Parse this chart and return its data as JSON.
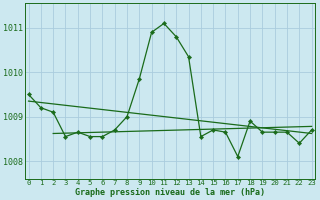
{
  "title": "Graphe pression niveau de la mer (hPa)",
  "background_color": "#cce8f0",
  "grid_color": "#aaccdd",
  "line_color": "#1a6b1a",
  "x_values": [
    0,
    1,
    2,
    3,
    4,
    5,
    6,
    7,
    8,
    9,
    10,
    11,
    12,
    13,
    14,
    15,
    16,
    17,
    18,
    19,
    20,
    21,
    22,
    23
  ],
  "y_values": [
    1009.5,
    1009.2,
    1009.1,
    1008.55,
    1008.65,
    1008.55,
    1008.55,
    1008.7,
    1009.0,
    1009.85,
    1010.9,
    1011.1,
    1010.8,
    1010.35,
    1008.55,
    1008.7,
    1008.65,
    1008.1,
    1008.9,
    1008.65,
    1008.65,
    1008.65,
    1008.4,
    1008.7
  ],
  "trend1_x": [
    0,
    23
  ],
  "trend1_y": [
    1009.35,
    1008.62
  ],
  "trend2_x": [
    2,
    23
  ],
  "trend2_y": [
    1008.62,
    1008.78
  ],
  "ylim": [
    1007.6,
    1011.55
  ],
  "yticks": [
    1008,
    1009,
    1010,
    1011
  ],
  "xlim": [
    -0.3,
    23.3
  ],
  "xticks": [
    0,
    1,
    2,
    3,
    4,
    5,
    6,
    7,
    8,
    9,
    10,
    11,
    12,
    13,
    14,
    15,
    16,
    17,
    18,
    19,
    20,
    21,
    22,
    23
  ],
  "xlabel_fontsize": 6.0,
  "ytick_fontsize": 6.0,
  "xtick_fontsize": 5.2
}
